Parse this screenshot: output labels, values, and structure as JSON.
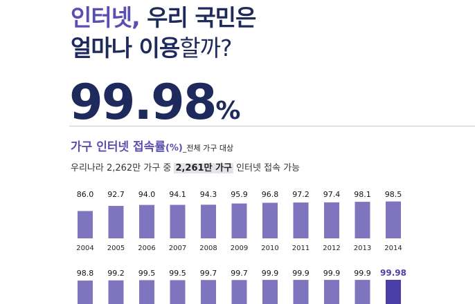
{
  "headline": {
    "line1_highlight": "인터넷,",
    "line1_rest": " 우리 국민은",
    "line2_bold": "얼마나 이용",
    "line2_rest": "할까?"
  },
  "big_number": {
    "value": "99.98",
    "unit": "%"
  },
  "subtitle": {
    "main": "가구 인터넷 접속률",
    "unit": "(%)",
    "note": "_전체 가구 대상"
  },
  "description": {
    "before": "우리나라 2,262만 가구 중 ",
    "highlight": "2,261만 가구",
    "after": " 인터넷 접속 가능"
  },
  "colors": {
    "bar": "#7f74be",
    "highlight_bar": "#4a3fa6",
    "title": "#1f2a5c",
    "accent": "#5a4fb1"
  },
  "chart_data": {
    "type": "bar",
    "title": "가구 인터넷 접속률(%)",
    "xlabel": "",
    "ylabel": "",
    "rows": [
      {
        "categories": [
          "2004",
          "2005",
          "2006",
          "2007",
          "2008",
          "2009",
          "2010",
          "2011",
          "2012",
          "2013",
          "2014"
        ],
        "labels": [
          "86.0",
          "92.7",
          "94.0",
          "94.1",
          "94.3",
          "95.9",
          "96.8",
          "97.2",
          "97.4",
          "98.1",
          "98.5"
        ],
        "values": [
          86.0,
          92.7,
          94.0,
          94.1,
          94.3,
          95.9,
          96.8,
          97.2,
          97.4,
          98.1,
          98.5
        ]
      },
      {
        "categories": [],
        "labels": [
          "98.8",
          "99.2",
          "99.5",
          "99.5",
          "99.7",
          "99.7",
          "99.9",
          "99.9",
          "99.9",
          "99.9",
          "99.98"
        ],
        "values": [
          98.8,
          99.2,
          99.5,
          99.5,
          99.7,
          99.7,
          99.9,
          99.9,
          99.9,
          99.9,
          99.98
        ],
        "highlight_index": 10
      }
    ]
  }
}
